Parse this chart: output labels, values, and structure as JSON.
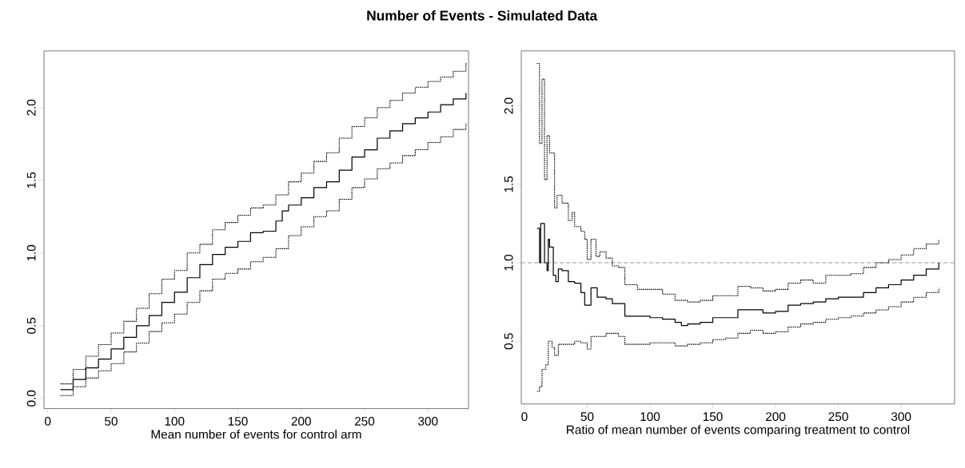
{
  "chart_data": [
    {
      "type": "step",
      "title": "Number of Events - Simulated Data",
      "xlabel": "Mean number of events for control arm",
      "xlim": [
        -3,
        332
      ],
      "ylim": [
        -0.07,
        2.39
      ],
      "xticks": [
        0,
        50,
        100,
        150,
        200,
        250,
        300
      ],
      "yticks": [
        {
          "value": 0,
          "label": "0.0"
        },
        {
          "value": 0.5,
          "label": "0.5"
        },
        {
          "value": 1,
          "label": "1.0"
        },
        {
          "value": 1.5,
          "label": "1.5"
        },
        {
          "value": 2,
          "label": "2.0"
        }
      ],
      "series": [
        {
          "color": "#000000",
          "line_style": "solid",
          "x": [
            10,
            20,
            30,
            40,
            50,
            60,
            70,
            80,
            90,
            100,
            110,
            120,
            130,
            140,
            150,
            160,
            170,
            180,
            185,
            190,
            200,
            210,
            220,
            230,
            240,
            250,
            260,
            270,
            280,
            290,
            300,
            310,
            320,
            330
          ],
          "values": [
            0.06,
            0.13,
            0.21,
            0.27,
            0.34,
            0.42,
            0.5,
            0.57,
            0.66,
            0.73,
            0.83,
            0.92,
            0.99,
            1.04,
            1.08,
            1.14,
            1.15,
            1.22,
            1.29,
            1.33,
            1.38,
            1.45,
            1.49,
            1.57,
            1.66,
            1.71,
            1.79,
            1.84,
            1.89,
            1.93,
            1.97,
            2.02,
            2.06,
            2.1
          ]
        },
        {
          "color": "#000000",
          "line_style": "dotted",
          "x": [
            10,
            20,
            30,
            40,
            50,
            60,
            70,
            80,
            90,
            100,
            110,
            120,
            130,
            140,
            150,
            160,
            170,
            180,
            190,
            200,
            210,
            220,
            230,
            240,
            250,
            260,
            270,
            280,
            290,
            300,
            310,
            320,
            330
          ],
          "values": [
            0.1,
            0.2,
            0.29,
            0.37,
            0.45,
            0.53,
            0.62,
            0.72,
            0.82,
            0.88,
            1.0,
            1.06,
            1.16,
            1.21,
            1.26,
            1.31,
            1.33,
            1.4,
            1.49,
            1.55,
            1.63,
            1.69,
            1.79,
            1.87,
            1.93,
            2.0,
            2.05,
            2.1,
            2.14,
            2.18,
            2.21,
            2.25,
            2.31
          ]
        },
        {
          "color": "#000000",
          "line_style": "dotted",
          "x": [
            10,
            20,
            30,
            40,
            50,
            60,
            70,
            80,
            90,
            100,
            110,
            120,
            130,
            140,
            150,
            160,
            170,
            180,
            190,
            200,
            210,
            220,
            230,
            240,
            250,
            260,
            270,
            280,
            290,
            300,
            310,
            320,
            330
          ],
          "values": [
            0.02,
            0.08,
            0.14,
            0.19,
            0.24,
            0.32,
            0.38,
            0.46,
            0.52,
            0.58,
            0.66,
            0.74,
            0.82,
            0.86,
            0.89,
            0.94,
            0.97,
            1.03,
            1.12,
            1.18,
            1.25,
            1.29,
            1.37,
            1.45,
            1.51,
            1.58,
            1.62,
            1.67,
            1.71,
            1.76,
            1.8,
            1.85,
            1.89
          ]
        }
      ]
    },
    {
      "type": "step",
      "xlabel": "Ratio of mean number of events comparing treatment to control",
      "xlim": [
        -2.5,
        342.6
      ],
      "ylim": [
        0.1,
        2.35
      ],
      "xticks": [
        0,
        50,
        100,
        150,
        200,
        250,
        300
      ],
      "yticks": [
        {
          "value": 0.5,
          "label": "0.5"
        },
        {
          "value": 1,
          "label": "1.0"
        },
        {
          "value": 1.5,
          "label": "1.5"
        },
        {
          "value": 2,
          "label": "2.0"
        }
      ],
      "ref_lines": [
        {
          "axis": "y",
          "value": 1,
          "color": "#999999",
          "line_style": "dashed"
        }
      ],
      "series": [
        {
          "color": "#000000",
          "line_style": "solid",
          "x": [
            10,
            12,
            13,
            15,
            16,
            18,
            19,
            20,
            22,
            23,
            25,
            27,
            30,
            35,
            40,
            45,
            48,
            50,
            53,
            58,
            65,
            70,
            75,
            80,
            90,
            100,
            110,
            120,
            125,
            130,
            140,
            150,
            160,
            170,
            180,
            190,
            200,
            210,
            220,
            230,
            240,
            250,
            260,
            270,
            280,
            290,
            300,
            310,
            320,
            330
          ],
          "values": [
            1.22,
            1.0,
            1.25,
            1.25,
            1.0,
            0.95,
            1.15,
            1.1,
            1.1,
            0.92,
            0.88,
            0.96,
            0.95,
            0.88,
            0.87,
            0.81,
            0.73,
            0.73,
            0.84,
            0.78,
            0.77,
            0.74,
            0.74,
            0.66,
            0.66,
            0.65,
            0.64,
            0.62,
            0.6,
            0.61,
            0.62,
            0.65,
            0.65,
            0.7,
            0.7,
            0.68,
            0.69,
            0.73,
            0.74,
            0.75,
            0.77,
            0.78,
            0.78,
            0.81,
            0.84,
            0.86,
            0.89,
            0.92,
            0.96,
            1.0
          ]
        },
        {
          "color": "#000000",
          "line_style": "dotted",
          "x": [
            10,
            12,
            14,
            16,
            18,
            20,
            22,
            24,
            26,
            30,
            35,
            38,
            40,
            45,
            48,
            50,
            53,
            57,
            60,
            65,
            70,
            75,
            80,
            90,
            100,
            110,
            120,
            130,
            140,
            150,
            160,
            170,
            180,
            190,
            200,
            210,
            220,
            230,
            240,
            250,
            260,
            270,
            280,
            290,
            300,
            310,
            320,
            330
          ],
          "values": [
            2.27,
            1.76,
            2.17,
            1.53,
            1.81,
            1.7,
            1.7,
            1.35,
            1.43,
            1.38,
            1.27,
            1.32,
            1.23,
            1.2,
            1.15,
            1.02,
            1.15,
            1.04,
            1.07,
            1.03,
            0.98,
            0.97,
            0.86,
            0.83,
            0.83,
            0.8,
            0.76,
            0.75,
            0.76,
            0.79,
            0.79,
            0.85,
            0.84,
            0.82,
            0.83,
            0.87,
            0.89,
            0.87,
            0.92,
            0.92,
            0.93,
            0.97,
            1.0,
            1.02,
            1.05,
            1.09,
            1.12,
            1.15
          ]
        },
        {
          "color": "#000000",
          "line_style": "dotted",
          "x": [
            10,
            12,
            14,
            17,
            19,
            22,
            24,
            27,
            30,
            40,
            45,
            50,
            53,
            60,
            65,
            75,
            80,
            90,
            100,
            110,
            120,
            130,
            140,
            150,
            160,
            170,
            180,
            190,
            200,
            210,
            220,
            230,
            240,
            250,
            260,
            270,
            280,
            290,
            300,
            310,
            320,
            330
          ],
          "values": [
            0.18,
            0.21,
            0.32,
            0.35,
            0.5,
            0.46,
            0.41,
            0.48,
            0.48,
            0.5,
            0.49,
            0.45,
            0.53,
            0.53,
            0.55,
            0.53,
            0.48,
            0.48,
            0.49,
            0.49,
            0.47,
            0.48,
            0.49,
            0.51,
            0.52,
            0.55,
            0.57,
            0.55,
            0.56,
            0.59,
            0.61,
            0.62,
            0.64,
            0.65,
            0.66,
            0.68,
            0.7,
            0.72,
            0.75,
            0.78,
            0.81,
            0.84
          ]
        }
      ]
    }
  ]
}
